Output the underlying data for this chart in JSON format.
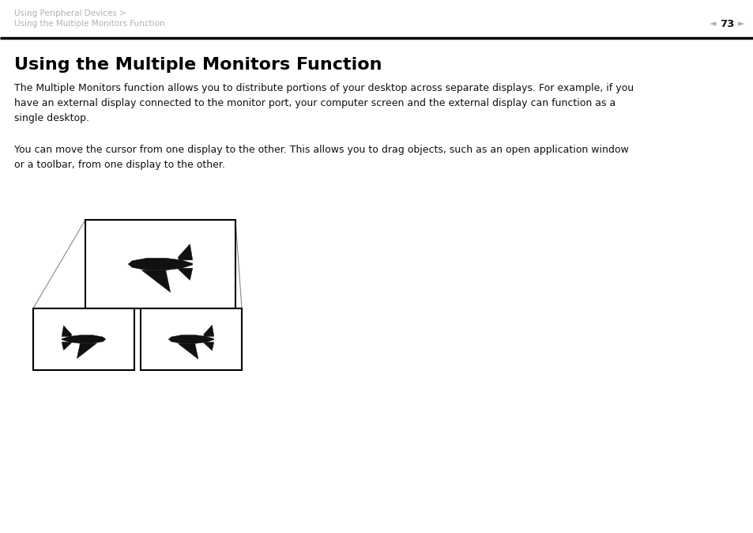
{
  "bg_color": "#ffffff",
  "header_breadcrumb1": "Using Peripheral Devices >",
  "header_breadcrumb2": "Using the Multiple Monitors Function",
  "page_number": "73",
  "title": "Using the Multiple Monitors Function",
  "para1": "The Multiple Monitors function allows you to distribute portions of your desktop across separate displays. For example, if you\nhave an external display connected to the monitor port, your computer screen and the external display can function as a\nsingle desktop.",
  "para2": "You can move the cursor from one display to the other. This allows you to drag objects, such as an open application window\nor a toolbar, from one display to the other.",
  "header_color": "#b0b0b0",
  "separator_color": "#000000",
  "title_fontsize": 16,
  "body_fontsize": 9,
  "header_fontsize": 7.5
}
